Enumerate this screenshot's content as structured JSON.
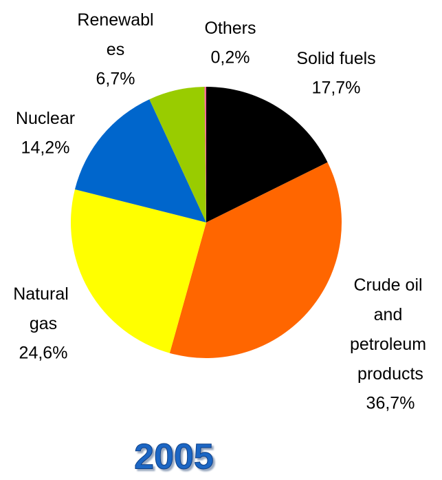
{
  "chart_data": {
    "type": "pie",
    "title": "2005",
    "categories": [
      "Solid fuels",
      "Crude oil and petroleum products",
      "Natural gas",
      "Nuclear",
      "Renewables",
      "Others"
    ],
    "values": [
      17.7,
      36.7,
      24.6,
      14.2,
      6.7,
      0.2
    ],
    "value_labels": [
      "17,7%",
      "36,7%",
      "24,6%",
      "14,2%",
      "6,7%",
      "0,2%"
    ],
    "colors": [
      "#000000",
      "#ff6600",
      "#ffff00",
      "#0066cc",
      "#99cc00",
      "#ff6699"
    ]
  }
}
